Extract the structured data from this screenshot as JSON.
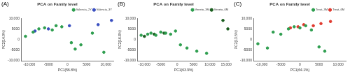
{
  "chart_data": [
    {
      "type": "scatter",
      "panel_label": "(A)",
      "title": "PCA on Family level",
      "x_label": "PC1(56.8%)",
      "y_label": "PC2(14.9%)",
      "xlim": [
        -12000,
        12000
      ],
      "ylim": [
        -10000,
        10000
      ],
      "xticks": [
        {
          "value": -10000,
          "label": "-10,000"
        },
        -5000,
        0,
        5000,
        {
          "value": 10000,
          "label": "10,000"
        }
      ],
      "yticks": [
        {
          "value": -10000,
          "label": "-10,000"
        },
        -5000,
        0,
        5000,
        {
          "value": 10000,
          "label": "10,000"
        }
      ],
      "grid": false,
      "legend": "top-right",
      "series": [
        {
          "name": "Valencia_2Y",
          "color": "#2e9e4f",
          "marker": "circle",
          "x": [
            -11000,
            -9000,
            -7500,
            -6000,
            -4000,
            -1500,
            1000,
            2000,
            3500,
            6500,
            9500,
            -3000
          ],
          "y": [
            1500,
            3500,
            5000,
            5500,
            4500,
            6000,
            -1500,
            -4500,
            -2500,
            3000,
            -6000,
            6500
          ]
        },
        {
          "name": "Valencia_3Y",
          "color": "#3a4fc0",
          "marker": "circle",
          "x": [
            -8500,
            -5000,
            500,
            8000,
            11500
          ],
          "y": [
            4000,
            5000,
            6500,
            7000,
            9000
          ]
        }
      ]
    },
    {
      "type": "scatter",
      "panel_label": "(B)",
      "title": "PCA on Family level",
      "x_label": "PC1(63.9%)",
      "y_label": "PC2(16.8%)",
      "xlim": [
        -12000,
        16000
      ],
      "ylim": [
        -10000,
        10000
      ],
      "xticks": [
        {
          "value": -10000,
          "label": "-10,000"
        },
        -5000,
        0,
        5000,
        {
          "value": 10000,
          "label": "10,000"
        },
        {
          "value": 15000,
          "label": "15,000"
        }
      ],
      "yticks": [
        {
          "value": -10000,
          "label": "-10,000"
        },
        -5000,
        0,
        5000,
        {
          "value": 10000,
          "label": "10,000"
        }
      ],
      "grid": false,
      "legend": "top-right",
      "series": [
        {
          "name": "Veneto_3M",
          "color": "#2e9e4f",
          "marker": "circle",
          "x": [
            -11000,
            -9000,
            -8000,
            -6500,
            -5000,
            -3500,
            -2000,
            -500,
            1000,
            3000,
            6000,
            9000
          ],
          "y": [
            2000,
            2500,
            3000,
            2000,
            3500,
            3000,
            2500,
            4000,
            -2500,
            -4000,
            -5500,
            -6500
          ]
        },
        {
          "name": "Veneto_6M",
          "color": "#1b5e20",
          "marker": "circle",
          "x": [
            -10000,
            -7000,
            -4000,
            14000,
            15500
          ],
          "y": [
            1500,
            2500,
            3000,
            9000,
            5000
          ]
        }
      ]
    },
    {
      "type": "scatter",
      "panel_label": "(C)",
      "title": "PCA on Family level",
      "x_label": "PC1(64.1%)",
      "y_label": "PC2(13.5%)",
      "xlim": [
        -12000,
        12000
      ],
      "ylim": [
        -10000,
        10000
      ],
      "xticks": [
        {
          "value": -10000,
          "label": "-10,000"
        },
        -5000,
        0,
        5000,
        {
          "value": 10000,
          "label": "10,000"
        }
      ],
      "yticks": [
        {
          "value": -10000,
          "label": "-10,000"
        },
        -5000,
        0,
        5000,
        {
          "value": 10000,
          "label": "10,000"
        }
      ],
      "grid": false,
      "legend": "top-right",
      "series": [
        {
          "name": "Treat_3M",
          "color": "#2e9e4f",
          "marker": "circle",
          "x": [
            -11000,
            -8500,
            -7000,
            -5000,
            -3000,
            -1500,
            0,
            1500,
            3000,
            5000,
            6500
          ],
          "y": [
            -2000,
            -4000,
            3500,
            2500,
            5000,
            6000,
            5500,
            6500,
            4500,
            -3500,
            -5500
          ]
        },
        {
          "name": "Treat_6M",
          "color": "#e03a2f",
          "marker": "circle",
          "x": [
            -2500,
            -500,
            1000,
            3500,
            5500,
            8000
          ],
          "y": [
            5500,
            6000,
            7000,
            6500,
            7500,
            8500
          ]
        }
      ]
    }
  ]
}
